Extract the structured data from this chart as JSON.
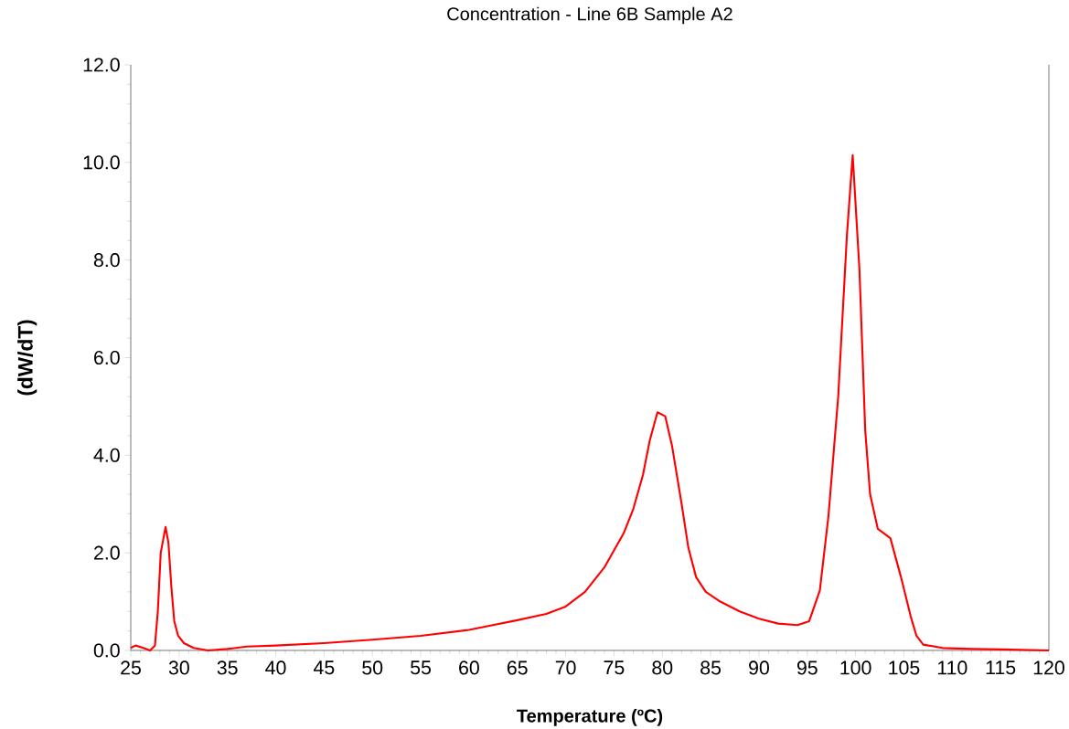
{
  "chart_data": {
    "type": "line",
    "title": "Concentration - Line 6B Sample A2",
    "xlabel": "Temperature (ºC)",
    "ylabel": "(dW/dT)",
    "x": [
      25,
      25.5,
      26.3,
      27,
      27.5,
      27.8,
      28.1,
      28.6,
      28.9,
      29.2,
      29.5,
      29.9,
      30.5,
      31.5,
      33,
      35,
      37,
      40,
      45,
      50,
      55,
      60,
      62,
      65,
      68,
      70,
      72,
      74,
      76,
      77,
      78,
      78.7,
      79.5,
      80.3,
      81,
      82,
      82.7,
      83.5,
      84.5,
      86,
      88,
      90,
      92,
      94,
      95.2,
      96.3,
      97.2,
      98.2,
      99.1,
      99.7,
      100.4,
      101,
      101.5,
      102.3,
      103.6,
      104.7,
      105.7,
      106.3,
      107,
      109,
      112,
      115,
      120
    ],
    "series": [
      {
        "color": "#ff0000",
        "values": [
          0.05,
          0.1,
          0.05,
          0.0,
          0.1,
          0.8,
          2.0,
          2.53,
          2.2,
          1.3,
          0.6,
          0.3,
          0.15,
          0.05,
          0.0,
          0.03,
          0.08,
          0.1,
          0.15,
          0.22,
          0.3,
          0.42,
          0.5,
          0.62,
          0.75,
          0.9,
          1.2,
          1.7,
          2.4,
          2.9,
          3.6,
          4.3,
          4.88,
          4.8,
          4.2,
          3.0,
          2.1,
          1.5,
          1.2,
          1.0,
          0.8,
          0.65,
          0.55,
          0.52,
          0.6,
          1.23,
          2.77,
          5.2,
          8.5,
          10.15,
          7.8,
          4.5,
          3.2,
          2.49,
          2.3,
          1.5,
          0.7,
          0.3,
          0.12,
          0.05,
          0.03,
          0.02,
          0.0
        ]
      }
    ],
    "xlim": [
      25,
      120
    ],
    "xticks": [
      25,
      30,
      35,
      40,
      45,
      50,
      55,
      60,
      65,
      70,
      75,
      80,
      85,
      90,
      95,
      100,
      105,
      110,
      115,
      120
    ],
    "ylim": [
      0,
      12
    ],
    "yticks": [
      {
        "value": 0,
        "label": "0.0"
      },
      {
        "value": 2,
        "label": "2.0"
      },
      {
        "value": 4,
        "label": "4.0"
      },
      {
        "value": 6,
        "label": "6.0"
      },
      {
        "value": 8,
        "label": "8.0"
      },
      {
        "value": 10,
        "label": "10.0"
      },
      {
        "value": 12,
        "label": "12.0"
      }
    ]
  }
}
